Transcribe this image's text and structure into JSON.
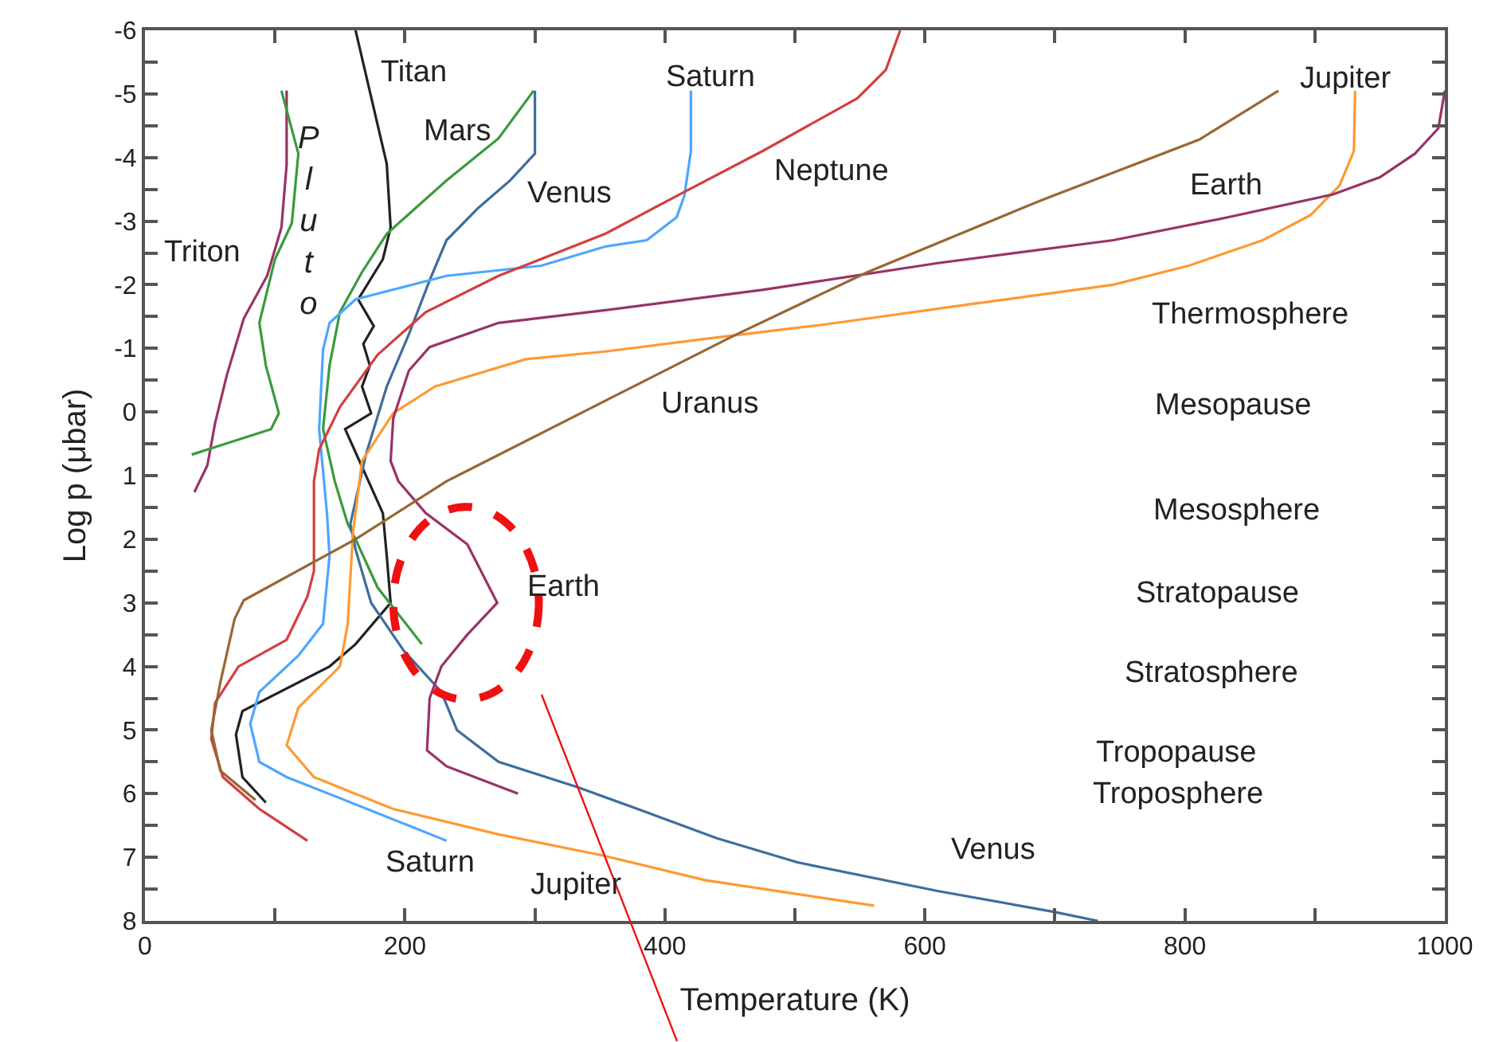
{
  "chart_data": {
    "type": "line",
    "xlabel": "Temperature (K)",
    "ylabel": "Log p (μbar)",
    "xlim": [
      0,
      1000
    ],
    "ylim": [
      8,
      -6
    ],
    "xticks": [
      0,
      {
        "value": 100,
        "label": null
      },
      200,
      {
        "value": 300,
        "label": null
      },
      400,
      {
        "value": 500,
        "label": null
      },
      600,
      {
        "value": 700,
        "label": null
      },
      800,
      {
        "value": 900,
        "label": null
      },
      1000
    ],
    "yticks": [
      -6,
      {
        "value": -5.5,
        "label": null
      },
      -5,
      {
        "value": -4.5,
        "label": null
      },
      -4,
      {
        "value": -3.5,
        "label": null
      },
      -3,
      {
        "value": -2.5,
        "label": null
      },
      -2,
      {
        "value": -1.5,
        "label": null
      },
      -1,
      {
        "value": -0.5,
        "label": null
      },
      0,
      {
        "value": 0.5,
        "label": null
      },
      1,
      {
        "value": 1.5,
        "label": null
      },
      2,
      {
        "value": 2.5,
        "label": null
      },
      3,
      {
        "value": 3.5,
        "label": null
      },
      4,
      {
        "value": 4.5,
        "label": null
      },
      5,
      {
        "value": 5.5,
        "label": null
      },
      6,
      {
        "value": 6.5,
        "label": null
      },
      7,
      {
        "value": 7.5,
        "label": null
      },
      8
    ],
    "marker": "none",
    "line_style": "solid",
    "series": [
      {
        "color": "#222222",
        "x": [
          162,
          186,
          189,
          183,
          164,
          176,
          168,
          173,
          167,
          174,
          154,
          183,
          186,
          189,
          162,
          142,
          75,
          70,
          75,
          93
        ],
        "values": [
          -6,
          -3.9,
          -2.9,
          -2.4,
          -1.77,
          -1.35,
          -1.07,
          -0.73,
          -0.4,
          0.02,
          0.27,
          1.59,
          2.26,
          3.0,
          3.65,
          4.0,
          4.7,
          5.07,
          5.74,
          6.14
        ]
      },
      {
        "color": "#3a9a3a",
        "x": [
          299,
          272,
          232,
          186,
          167,
          150,
          142,
          137,
          146,
          156,
          162,
          179,
          213
        ],
        "values": [
          -5.05,
          -4.3,
          -3.64,
          -2.8,
          -2.2,
          -1.57,
          -0.73,
          0.27,
          1.09,
          1.76,
          2.0,
          2.76,
          3.65
        ]
      },
      {
        "color": "#3d6d9e",
        "x": [
          300,
          300,
          281,
          256,
          232,
          219,
          203,
          186,
          170,
          158,
          162,
          174,
          199,
          228,
          240,
          272,
          333,
          379,
          440,
          502,
          610,
          700,
          733
        ],
        "values": [
          -5.05,
          -4.06,
          -3.64,
          -3.2,
          -2.7,
          -2.07,
          -1.22,
          -0.4,
          0.67,
          1.76,
          2.16,
          3.0,
          3.75,
          4.4,
          5.0,
          5.5,
          5.9,
          6.24,
          6.7,
          7.08,
          7.53,
          7.86,
          8
        ]
      },
      {
        "color": "#4da6ff",
        "x": [
          420,
          420,
          415,
          409,
          386,
          354,
          305,
          232,
          162,
          142,
          137,
          134,
          140,
          142,
          137,
          118,
          88,
          81,
          88,
          109,
          150,
          232
        ],
        "values": [
          -5.05,
          -4.1,
          -3.4,
          -3.06,
          -2.7,
          -2.6,
          -2.3,
          -2.14,
          -1.77,
          -1.4,
          -0.98,
          0.27,
          1.59,
          2.26,
          3.33,
          3.83,
          4.4,
          4.9,
          5.5,
          5.74,
          6.07,
          6.74
        ]
      },
      {
        "color": "#ff9933",
        "x": [
          931,
          930,
          919,
          897,
          860,
          803,
          745,
          637,
          521,
          431,
          354,
          293,
          223,
          191,
          167,
          160,
          156,
          150,
          118,
          109,
          130,
          191,
          272,
          354,
          431,
          561
        ],
        "values": [
          -5.05,
          -4.1,
          -3.56,
          -3.1,
          -2.7,
          -2.3,
          -2.0,
          -1.7,
          -1.37,
          -1.15,
          -0.95,
          -0.83,
          -0.4,
          0.02,
          0.77,
          1.9,
          3.33,
          4.0,
          4.65,
          5.24,
          5.74,
          6.24,
          6.64,
          6.98,
          7.36,
          7.76
        ]
      },
      {
        "color": "#993366",
        "x": [
          1000,
          995,
          977,
          950,
          914,
          833,
          745,
          610,
          475,
          354,
          272,
          219,
          203,
          191,
          189,
          195,
          216,
          248,
          271,
          248,
          228,
          219,
          217,
          232,
          287
        ],
        "values": [
          -5.05,
          -4.46,
          -4.06,
          -3.69,
          -3.42,
          -3.06,
          -2.7,
          -2.34,
          -1.92,
          -1.6,
          -1.4,
          -1.02,
          -0.65,
          0.1,
          0.77,
          1.09,
          1.59,
          2.08,
          3.0,
          3.5,
          4.0,
          4.5,
          5.32,
          5.57,
          6.0
        ]
      },
      {
        "color": "#d33f3f",
        "x": [
          581,
          570,
          548,
          475,
          415,
          354,
          272,
          216,
          179,
          150,
          134,
          130,
          130,
          130,
          125,
          109,
          72,
          54,
          51,
          60,
          88,
          125
        ],
        "values": [
          -6,
          -5.38,
          -4.93,
          -4.1,
          -3.46,
          -2.8,
          -2.14,
          -1.57,
          -0.9,
          -0.08,
          0.59,
          1.09,
          1.84,
          2.5,
          2.9,
          3.58,
          4.0,
          4.57,
          5.14,
          5.74,
          6.24,
          6.74
        ]
      },
      {
        "color": "#996633",
        "x": [
          872,
          811,
          691,
          556,
          453,
          342,
          256,
          232,
          162,
          76,
          69,
          58,
          51,
          58,
          85
        ],
        "values": [
          -5.05,
          -4.28,
          -3.34,
          -2.2,
          -1.2,
          -0.05,
          0.84,
          1.09,
          2.0,
          2.96,
          3.25,
          4.25,
          5.0,
          5.64,
          6.1
        ]
      },
      {
        "color": "#993366",
        "x": [
          109,
          109,
          105,
          94,
          76,
          63,
          54,
          48,
          38
        ],
        "values": [
          -5.05,
          -3.89,
          -2.9,
          -2.14,
          -1.47,
          -0.58,
          0.17,
          0.84,
          1.26
        ]
      },
      {
        "color": "#3a9a3a",
        "x": [
          105,
          118,
          113,
          100,
          88,
          93,
          103,
          97,
          36
        ],
        "values": [
          -5.05,
          -4.06,
          -2.97,
          -2.4,
          -1.4,
          -0.73,
          0.02,
          0.27,
          0.67
        ]
      }
    ],
    "annotations": [
      "Titan",
      "Mars",
      "Venus",
      "Saturn",
      "Neptune",
      "Jupiter",
      "Earth",
      "Triton",
      "Pluto",
      "Uranus",
      "Earth",
      "Venus",
      "Saturn",
      "Jupiter",
      "Thermosphere",
      "Mesopause",
      "Mesosphere",
      "Stratopause",
      "Stratosphere",
      "Tropopause",
      "Troposphere"
    ]
  }
}
